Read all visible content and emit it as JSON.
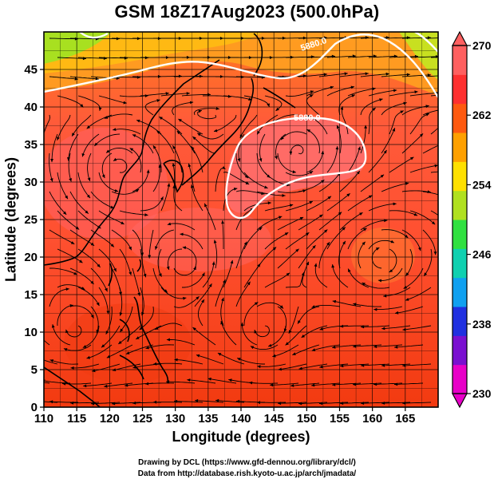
{
  "title": "GSM 18Z17Aug2023 (500.0hPa)",
  "xlabel": "Longitude (degrees)",
  "ylabel": "Latitude  (degrees)",
  "credits": [
    "Drawing by DCL (https://www.gfd-dennou.org/library/dcl/)",
    "Data from http://database.rish.kyoto-u.ac.jp/arch/jmadata/"
  ],
  "map": {
    "lon_range": [
      110,
      170
    ],
    "lat_range": [
      0,
      50
    ],
    "lon_ticks": [
      110,
      115,
      120,
      125,
      130,
      135,
      140,
      145,
      150,
      155,
      160,
      165
    ],
    "lat_ticks": [
      0,
      5,
      10,
      15,
      20,
      25,
      30,
      35,
      40,
      45
    ],
    "grid": true
  },
  "contours": [
    {
      "label": "5880.0",
      "color": "#ffffff"
    },
    {
      "label": "5880.0",
      "color": "#ffffff"
    }
  ],
  "colorbar": {
    "tick_labels": [
      "230",
      "238",
      "246",
      "254",
      "262",
      "270"
    ],
    "colors": [
      "#e800c8",
      "#7a10d0",
      "#2030e0",
      "#10a0f0",
      "#10d0b0",
      "#30e040",
      "#b0e020",
      "#ffe000",
      "#ffa000",
      "#ff5a10",
      "#ff3030",
      "#ff6060"
    ]
  }
}
